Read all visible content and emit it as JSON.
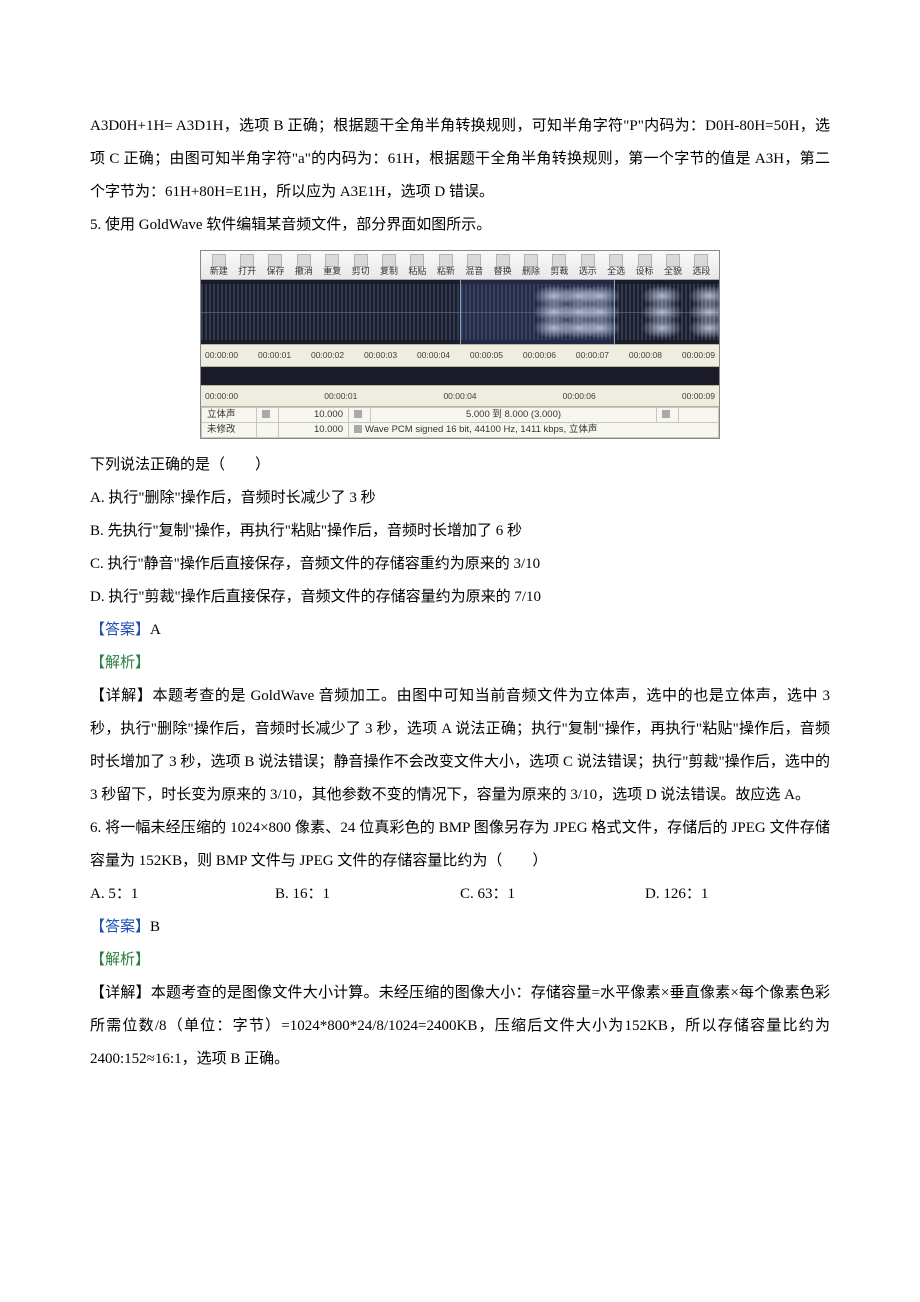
{
  "text_color": "#000000",
  "answer_color": "#1e4fb3",
  "analysis_color": "#2a7f3f",
  "intro": {
    "p1": "A3D0H+1H= A3D1H，选项 B 正确；根据题干全角半角转换规则，可知半角字符\"P\"内码为：D0H-80H=50H，选项 C 正确；由图可知半角字符\"a\"的内码为：61H，根据题干全角半角转换规则，第一个字节的值是 A3H，第二个字节为：61H+80H=E1H，所以应为 A3E1H，选项 D 错误。"
  },
  "q5": {
    "prompt": "5. 使用 GoldWave 软件编辑某音频文件，部分界面如图所示。",
    "post_fig": "下列说法正确的是（　　）",
    "A": "A. 执行\"删除\"操作后，音频时长减少了 3 秒",
    "B": "B. 先执行\"复制\"操作，再执行\"粘贴\"操作后，音频时长增加了 6 秒",
    "C": "C. 执行\"静音\"操作后直接保存，音频文件的存储容重约为原来的 3/10",
    "D": "D. 执行\"剪裁\"操作后直接保存，音频文件的存储容量约为原来的 7/10",
    "answer_label": "【答案】",
    "answer": "A",
    "analysis_label": "【解析】",
    "detail": "【详解】本题考查的是 GoldWave 音频加工。由图中可知当前音频文件为立体声，选中的也是立体声，选中 3 秒，执行\"删除\"操作后，音频时长减少了 3 秒，选项 A 说法正确；执行\"复制\"操作，再执行\"粘贴\"操作后，音频时长增加了 3 秒，选项 B 说法错误；静音操作不会改变文件大小，选项 C 说法错误；执行\"剪裁\"操作后，选中的 3 秒留下，时长变为原来的 3/10，其他参数不变的情况下，容量为原来的 3/10，选项 D 说法错误。故应选 A。"
  },
  "q6": {
    "prompt": "6. 将一幅未经压缩的 1024×800 像素、24 位真彩色的 BMP 图像另存为 JPEG 格式文件，存储后的 JPEG 文件存储容量为 152KB，则 BMP 文件与 JPEG 文件的存储容量比约为（　　）",
    "A": "A. 5：1",
    "B": "B. 16：1",
    "C": "C. 63：1",
    "D": "D. 126：1",
    "answer_label": "【答案】",
    "answer": "B",
    "analysis_label": "【解析】",
    "detail": "【详解】本题考查的是图像文件大小计算。未经压缩的图像大小：存储容量=水平像素×垂直像素×每个像素色彩所需位数/8（单位：字节）=1024*800*24/8/1024=2400KB，压缩后文件大小为152KB，所以存储容量比约为 2400:152≈16:1，选项 B 正确。"
  },
  "goldwave": {
    "toolbar": [
      "新建",
      "打开",
      "保存",
      "撤消",
      "重复",
      "剪切",
      "复制",
      "粘贴",
      "粘新",
      "混音",
      "替换",
      "删除",
      "剪裁",
      "选示",
      "全选",
      "设标",
      "全貌",
      "选段"
    ],
    "ruler1": [
      "00:00:00",
      "00:00:01",
      "00:00:02",
      "00:00:03",
      "00:00:04",
      "00:00:05",
      "00:00:06",
      "00:00:07",
      "00:00:08",
      "00:00:09"
    ],
    "ruler2": [
      "00:00:00",
      "00:00:01",
      "00:00:04",
      "00:00:06",
      "00:00:09"
    ],
    "bursts_left_pct": [
      64,
      69,
      73,
      85,
      94
    ],
    "status_row1_c0": "立体声",
    "status_row1_c1": "10.000",
    "status_row1_c2": "5.000 到 8.000 (3.000)",
    "status_row2_c0": "未修改",
    "status_row2_c1": "10.000",
    "status_row2_c2_prefix": "Wave PCM signed 16 bit, 44100 Hz, 1411 kbps, 立体声",
    "selection_start_pct": 50,
    "selection_end_pct": 80,
    "colors": {
      "wave_bg": "#1b1b2a",
      "ruler_bg": "#efece0",
      "fig_border": "#888888"
    }
  }
}
